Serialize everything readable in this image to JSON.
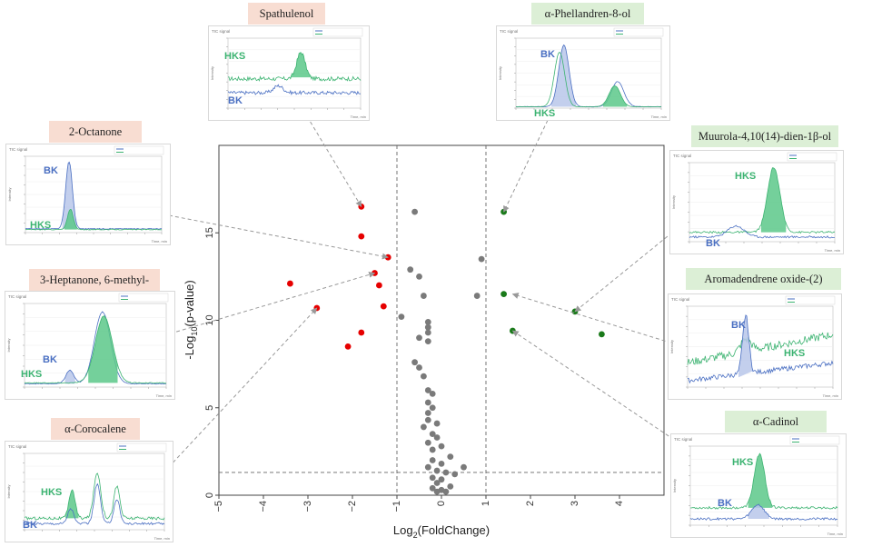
{
  "chart_data": {
    "type": "scatter",
    "xlabel": "Log2(FoldChange)",
    "ylabel": "-Log10(p-value)",
    "xlim": [
      -5,
      5
    ],
    "ylim": [
      0,
      20
    ],
    "x_ticks": [
      -5,
      -4,
      -3,
      -2,
      -1,
      0,
      1,
      2,
      3,
      4
    ],
    "y_ticks": [
      0,
      5,
      10,
      15
    ],
    "fold_change_thresholds": [
      -1,
      1
    ],
    "p_value_threshold": 1.3,
    "colors": {
      "down": "#e60000",
      "up": "#1a7a1a",
      "ns": "#7a7a7a"
    },
    "series": [
      {
        "group": "down",
        "points": [
          [
            -1.8,
            16.5
          ],
          [
            -1.8,
            14.8
          ],
          [
            -1.2,
            13.6
          ],
          [
            -1.5,
            12.7
          ],
          [
            -3.4,
            12.1
          ],
          [
            -1.4,
            12.0
          ],
          [
            -1.3,
            10.8
          ],
          [
            -2.8,
            10.7
          ],
          [
            -1.8,
            9.3
          ],
          [
            -2.1,
            8.5
          ]
        ]
      },
      {
        "group": "up",
        "points": [
          [
            1.4,
            16.2
          ],
          [
            1.4,
            11.5
          ],
          [
            3.0,
            10.5
          ],
          [
            1.6,
            9.4
          ],
          [
            3.6,
            9.2
          ]
        ]
      },
      {
        "group": "ns",
        "points": [
          [
            -0.6,
            16.2
          ],
          [
            0.9,
            13.5
          ],
          [
            -0.7,
            12.9
          ],
          [
            -0.5,
            12.5
          ],
          [
            -0.4,
            11.4
          ],
          [
            0.8,
            11.4
          ],
          [
            -0.9,
            10.2
          ],
          [
            -0.3,
            9.9
          ],
          [
            -0.3,
            9.6
          ],
          [
            -0.3,
            9.3
          ],
          [
            -0.5,
            9.0
          ],
          [
            -0.3,
            8.8
          ],
          [
            -0.6,
            7.6
          ],
          [
            -0.5,
            7.3
          ],
          [
            -0.4,
            6.8
          ],
          [
            -0.3,
            6.0
          ],
          [
            -0.2,
            5.8
          ],
          [
            -0.3,
            5.3
          ],
          [
            -0.2,
            5.0
          ],
          [
            -0.3,
            4.7
          ],
          [
            -0.3,
            4.3
          ],
          [
            -0.1,
            4.1
          ],
          [
            -0.4,
            3.9
          ],
          [
            -0.2,
            3.5
          ],
          [
            -0.1,
            3.3
          ],
          [
            -0.3,
            3.0
          ],
          [
            0.0,
            2.8
          ],
          [
            -0.2,
            2.6
          ],
          [
            0.2,
            2.2
          ],
          [
            -0.2,
            2.0
          ],
          [
            0.0,
            1.8
          ],
          [
            -0.3,
            1.6
          ],
          [
            0.5,
            1.6
          ],
          [
            -0.1,
            1.4
          ],
          [
            0.1,
            1.3
          ],
          [
            -0.2,
            1.0
          ],
          [
            0.0,
            0.9
          ],
          [
            -0.1,
            0.7
          ],
          [
            0.2,
            0.5
          ],
          [
            -0.2,
            0.4
          ],
          [
            0.0,
            0.3
          ],
          [
            -0.1,
            0.2
          ],
          [
            0.1,
            0.2
          ],
          [
            0.3,
            1.2
          ]
        ]
      }
    ]
  },
  "compounds": [
    {
      "id": "spathulenol",
      "name": "Spathulenol",
      "color": "red",
      "hks_label": "HKS",
      "bk_label": "BK"
    },
    {
      "id": "phellandren",
      "name": "α-Phellandren-8-ol",
      "color": "green",
      "hks_label": "HKS",
      "bk_label": "BK"
    },
    {
      "id": "octanone",
      "name": "2-Octanone",
      "color": "red",
      "hks_label": "HKS",
      "bk_label": "BK"
    },
    {
      "id": "heptanone",
      "name": "3-Heptanone, 6-methyl-",
      "color": "red",
      "hks_label": "HKS",
      "bk_label": "BK"
    },
    {
      "id": "corocalene",
      "name": "α-Corocalene",
      "color": "red",
      "hks_label": "HKS",
      "bk_label": "BK"
    },
    {
      "id": "muurola",
      "name": "Muurola-4,10(14)-dien-1β-ol",
      "color": "green",
      "hks_label": "HKS",
      "bk_label": "BK"
    },
    {
      "id": "aromadendrene",
      "name": "Aromadendrene oxide-(2)",
      "color": "green",
      "hks_label": "HKS",
      "bk_label": "BK"
    },
    {
      "id": "cadinol",
      "name": "α-Cadinol",
      "color": "green",
      "hks_label": "HKS",
      "bk_label": "BK"
    }
  ],
  "inset_header": "TIC signal",
  "inset_axis_label": "Intensity",
  "inset_time_label": "Time, min",
  "colors": {
    "hks": "#3cb371",
    "hks_fill": "#5cc88a",
    "bk": "#4a6fc2",
    "bk_fill": "#b9c7ea",
    "tag_red": "#f8ddd2",
    "tag_green": "#dcefd6"
  }
}
